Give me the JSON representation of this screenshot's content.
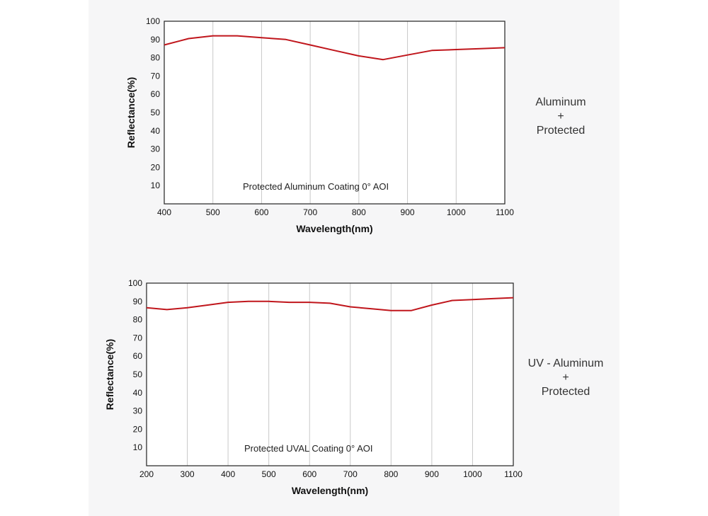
{
  "colors": {
    "curve": "#c0161c",
    "grid": "#c8c8c8",
    "axis": "#222222",
    "panel": "#f6f6f7"
  },
  "chart_data": [
    {
      "type": "line",
      "title": "",
      "annotation": "Protected Aluminum Coating  0°  AOI",
      "side_label": [
        "Aluminum",
        "+",
        "Protected"
      ],
      "xlabel": "Wavelength(nm)",
      "ylabel": "Reflectance(%)",
      "xlim": [
        400,
        1100
      ],
      "ylim": [
        0,
        100
      ],
      "x_ticks": [
        400,
        500,
        600,
        700,
        800,
        900,
        1000,
        1100
      ],
      "y_ticks": [
        10,
        20,
        30,
        40,
        50,
        60,
        70,
        80,
        90,
        100
      ],
      "grid": "vertical",
      "series": [
        {
          "x": [
            400,
            450,
            500,
            550,
            600,
            650,
            700,
            750,
            800,
            850,
            900,
            950,
            1000,
            1050,
            1100
          ],
          "y": [
            87,
            90.5,
            92,
            92,
            91,
            90,
            87,
            84,
            81,
            79,
            81.5,
            84,
            84.5,
            85,
            85.5
          ]
        }
      ]
    },
    {
      "type": "line",
      "title": "",
      "annotation": "Protected UVAL Coating  0°  AOI",
      "side_label": [
        "UV - Aluminum",
        "+",
        "Protected"
      ],
      "xlabel": "Wavelength(nm)",
      "ylabel": "Reflectance(%)",
      "xlim": [
        200,
        1100
      ],
      "ylim": [
        0,
        100
      ],
      "x_ticks": [
        200,
        300,
        400,
        500,
        600,
        700,
        800,
        900,
        1000,
        1100
      ],
      "y_ticks": [
        10,
        20,
        30,
        40,
        50,
        60,
        70,
        80,
        90,
        100
      ],
      "grid": "vertical",
      "series": [
        {
          "x": [
            200,
            250,
            300,
            350,
            400,
            450,
            500,
            550,
            600,
            650,
            700,
            750,
            800,
            850,
            900,
            950,
            1000,
            1050,
            1100
          ],
          "y": [
            86.5,
            85.5,
            86.5,
            88,
            89.5,
            90,
            90,
            89.5,
            89.5,
            89,
            87,
            86,
            85,
            85,
            88,
            90.5,
            91,
            91.5,
            92
          ]
        }
      ]
    }
  ]
}
